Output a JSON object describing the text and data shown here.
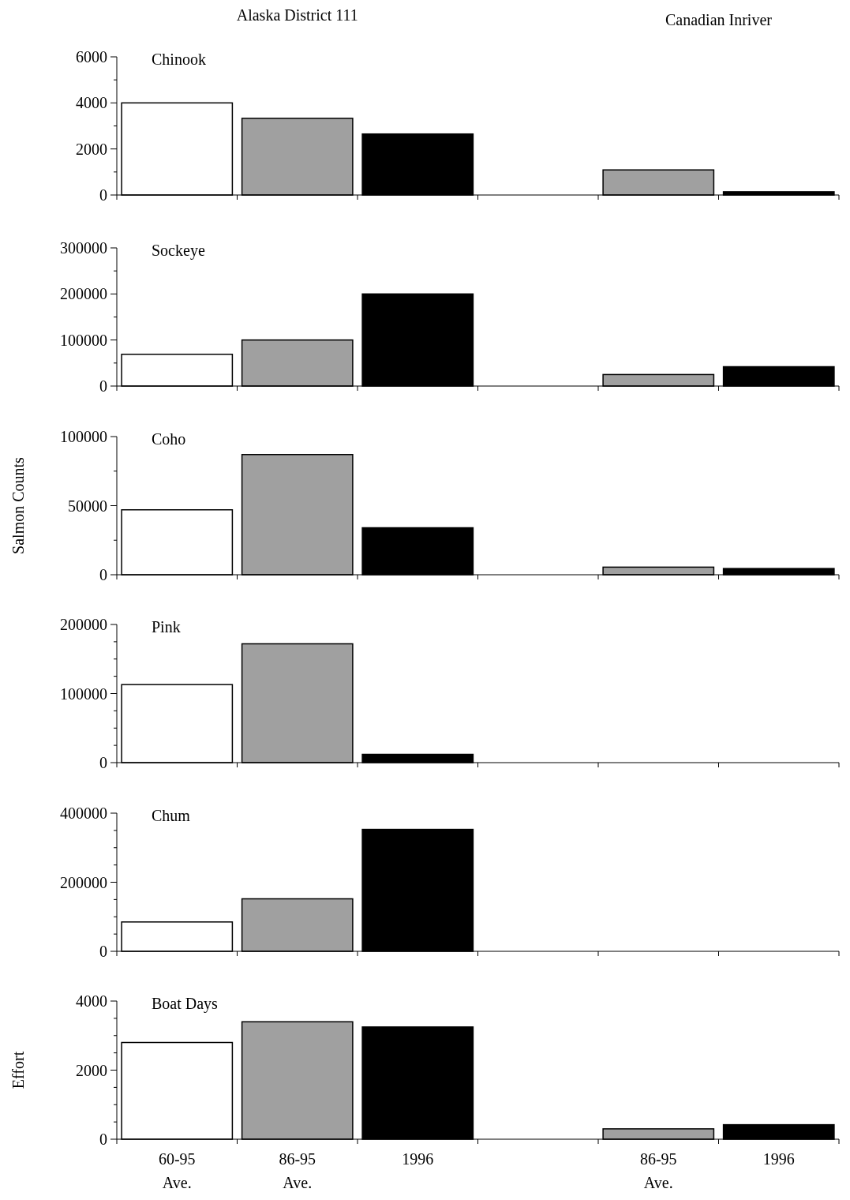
{
  "chart_data": [
    {
      "type": "bar",
      "title": "Chinook",
      "annotations": [
        "Alaska District 111",
        "Canadian Inriver"
      ],
      "categories": [
        null,
        null,
        null,
        null,
        null,
        null
      ],
      "values": [
        4000,
        3330,
        2650,
        null,
        1090,
        140
      ],
      "colors": [
        "#ffffff",
        "#a0a0a0",
        "#000000",
        null,
        "#a0a0a0",
        "#000000"
      ],
      "ylim": [
        0,
        6000
      ],
      "yticks": [
        0,
        {
          "value": 1000,
          "label": null
        },
        2000,
        {
          "value": 3000,
          "label": null
        },
        4000,
        {
          "value": 5000,
          "label": null
        },
        6000
      ],
      "tick_labels": "y"
    },
    {
      "type": "bar",
      "title": "Sockeye",
      "categories": [
        null,
        null,
        null,
        null,
        null,
        null
      ],
      "values": [
        69000,
        100000,
        200000,
        null,
        25000,
        42000
      ],
      "colors": [
        "#ffffff",
        "#a0a0a0",
        "#000000",
        null,
        "#a0a0a0",
        "#000000"
      ],
      "ylim": [
        0,
        300000
      ],
      "yticks": [
        0,
        {
          "value": 50000,
          "label": null
        },
        100000,
        {
          "value": 150000,
          "label": null
        },
        200000,
        {
          "value": 250000,
          "label": null
        },
        300000
      ],
      "tick_labels": "y"
    },
    {
      "type": "bar",
      "title": "Coho",
      "ylabel": "Salmon Counts",
      "categories": [
        null,
        null,
        null,
        null,
        null,
        null
      ],
      "values": [
        47000,
        87000,
        34000,
        null,
        5500,
        4500
      ],
      "colors": [
        "#ffffff",
        "#a0a0a0",
        "#000000",
        null,
        "#a0a0a0",
        "#000000"
      ],
      "ylim": [
        0,
        100000
      ],
      "yticks": [
        0,
        {
          "value": 25000,
          "label": null
        },
        50000,
        {
          "value": 75000,
          "label": null
        },
        100000
      ],
      "tick_labels": "y"
    },
    {
      "type": "bar",
      "title": "Pink",
      "categories": [
        null,
        null,
        null,
        null,
        null,
        null
      ],
      "values": [
        113000,
        172000,
        12000,
        null,
        null,
        null
      ],
      "colors": [
        "#ffffff",
        "#a0a0a0",
        "#000000",
        null,
        null,
        null
      ],
      "ylim": [
        0,
        200000
      ],
      "yticks": [
        0,
        {
          "value": 25000,
          "label": null
        },
        {
          "value": 50000,
          "label": null
        },
        {
          "value": 75000,
          "label": null
        },
        100000,
        {
          "value": 125000,
          "label": null
        },
        {
          "value": 150000,
          "label": null
        },
        {
          "value": 175000,
          "label": null
        },
        200000
      ],
      "tick_labels": "y"
    },
    {
      "type": "bar",
      "title": "Chum",
      "categories": [
        null,
        null,
        null,
        null,
        null,
        null
      ],
      "values": [
        85000,
        152000,
        353000,
        null,
        null,
        null
      ],
      "colors": [
        "#ffffff",
        "#a0a0a0",
        "#000000",
        null,
        null,
        null
      ],
      "ylim": [
        0,
        400000
      ],
      "yticks": [
        0,
        {
          "value": 50000,
          "label": null
        },
        {
          "value": 100000,
          "label": null
        },
        {
          "value": 150000,
          "label": null
        },
        200000,
        {
          "value": 250000,
          "label": null
        },
        {
          "value": 300000,
          "label": null
        },
        {
          "value": 350000,
          "label": null
        },
        400000
      ],
      "tick_labels": "y"
    },
    {
      "type": "bar",
      "title": "Boat Days",
      "ylabel": "Effort",
      "categories": [
        "60-95 Ave.",
        "86-95 Ave.",
        "1996",
        null,
        "86-95 Ave.",
        "1996"
      ],
      "values": [
        2800,
        3400,
        3250,
        null,
        300,
        420
      ],
      "colors": [
        "#ffffff",
        "#a0a0a0",
        "#000000",
        null,
        "#a0a0a0",
        "#000000"
      ],
      "ylim": [
        0,
        4000
      ],
      "yticks": [
        0,
        {
          "value": 500,
          "label": null
        },
        {
          "value": 1000,
          "label": null
        },
        {
          "value": 1500,
          "label": null
        },
        2000,
        {
          "value": 2500,
          "label": null
        },
        {
          "value": 3000,
          "label": null
        },
        {
          "value": 3500,
          "label": null
        },
        4000
      ]
    }
  ]
}
